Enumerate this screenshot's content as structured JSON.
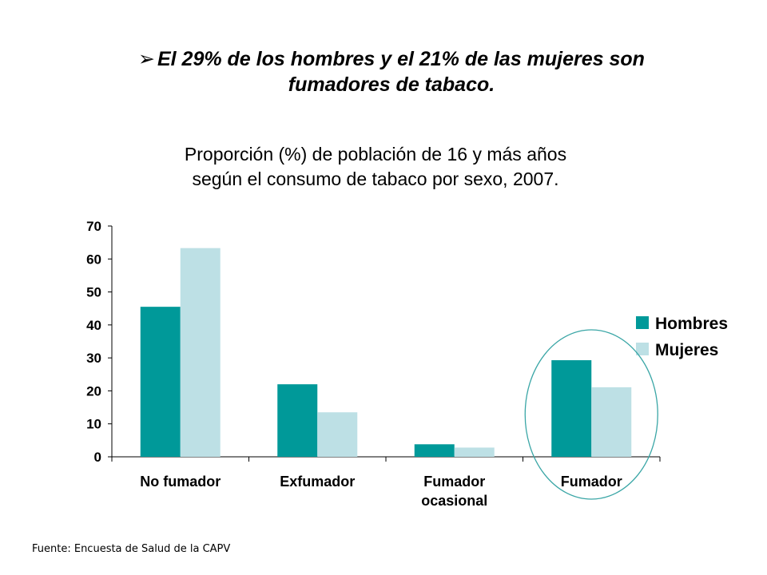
{
  "headline": {
    "arrow": "➢",
    "line1": "El 29% de los hombres y el 21% de las mujeres son",
    "line2": "fumadores de tabaco."
  },
  "source": "Fuente: Encuesta de Salud de la CAPV",
  "chart_data": {
    "type": "bar",
    "title_lines": [
      "Proporción (%) de población de 16 y más años",
      "según el consumo de tabaco por sexo, 2007."
    ],
    "categories": [
      [
        "No fumador"
      ],
      [
        "Exfumador"
      ],
      [
        "Fumador",
        "ocasional"
      ],
      [
        "Fumador"
      ]
    ],
    "series": [
      {
        "name": "Hombres",
        "color": "#009999",
        "values": [
          45.5,
          22,
          3.8,
          29.3
        ]
      },
      {
        "name": "Mujeres",
        "color": "#bde0e5",
        "values": [
          63.3,
          13.5,
          2.8,
          21.1
        ]
      }
    ],
    "ylim": [
      0,
      70
    ],
    "yticks": [
      0,
      10,
      20,
      30,
      40,
      50,
      60,
      70
    ],
    "legend_position": "right",
    "highlight": {
      "category_index": 3,
      "shape": "ellipse",
      "color": "#3aa6a6"
    }
  }
}
